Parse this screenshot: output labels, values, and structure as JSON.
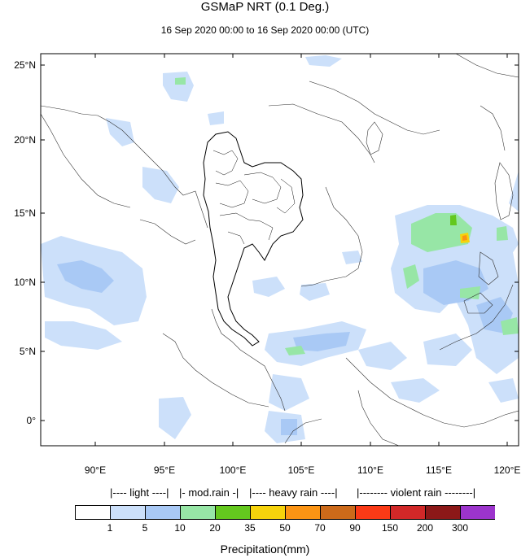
{
  "title": "GSMaP NRT (0.1 Deg.)",
  "subtitle": "16 Sep 2020 00:00 to 16 Sep 2020 00:00 (UTC)",
  "lat_labels": [
    "25°N",
    "20°N",
    "15°N",
    "10°N",
    "5°N",
    "0°"
  ],
  "lon_labels": [
    "90°E",
    "95°E",
    "100°E",
    "105°E",
    "110°E",
    "115°E",
    "120°E"
  ],
  "categories": {
    "light": "|---- light ----|",
    "mod": "|- mod.rain -|",
    "heavy": "|---- heavy rain ----|",
    "violent": "|-------- violent rain --------|"
  },
  "legend": {
    "colors": [
      "#ffffff",
      "#cce0fa",
      "#a9c9f5",
      "#97e6a6",
      "#64c81e",
      "#f6d30c",
      "#fb9414",
      "#cc6a1a",
      "#fa3a16",
      "#d12828",
      "#8c1818",
      "#9c34cc"
    ],
    "ticks": [
      "1",
      "5",
      "10",
      "20",
      "35",
      "50",
      "70",
      "90",
      "150",
      "200",
      "300"
    ],
    "title": "Precipitation(mm)"
  }
}
